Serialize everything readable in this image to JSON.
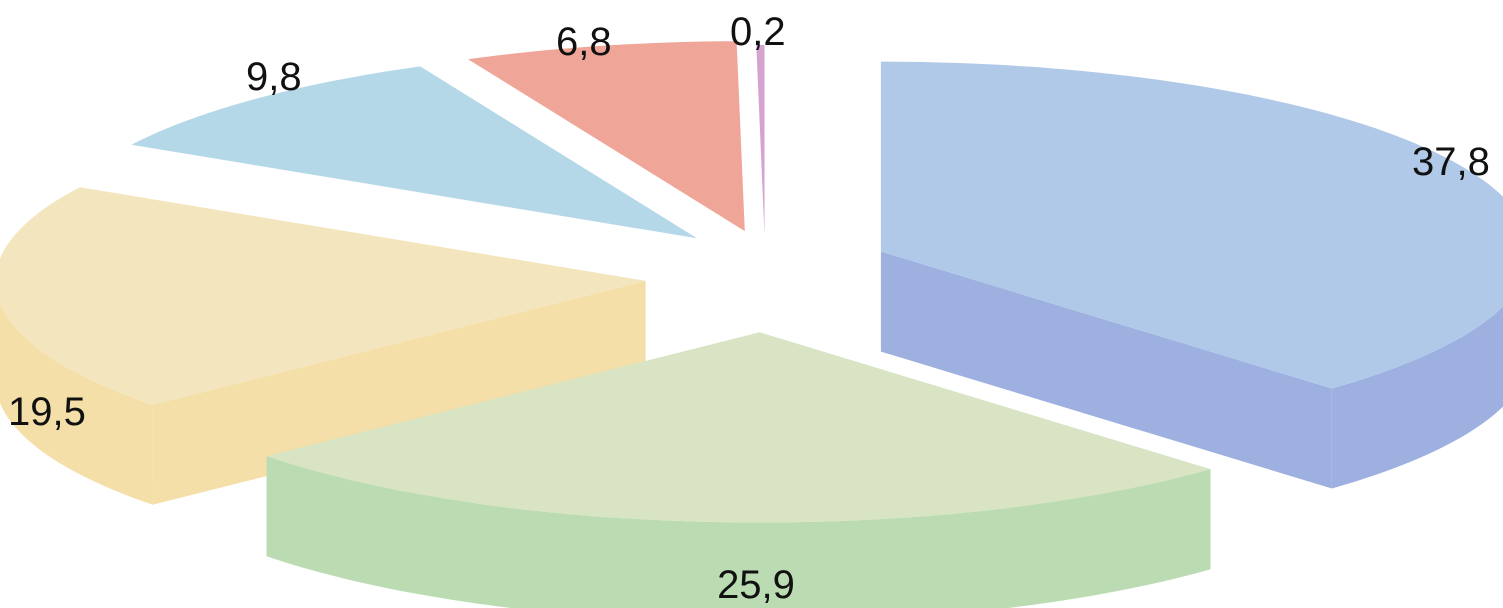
{
  "chart_data": {
    "type": "pie",
    "title": "",
    "style": "3d-exploded",
    "start": "12 o'clock, clockwise",
    "legend": "none",
    "slices": [
      {
        "label": "37,8",
        "value": 37.8,
        "top_color": "#B0C9E8",
        "side_color": "#9DB0DF"
      },
      {
        "label": "25,9",
        "value": 25.9,
        "top_color": "#D8E4C4",
        "side_color": "#BBDCB2"
      },
      {
        "label": "19,5",
        "value": 19.5,
        "top_color": "#F3E6BF",
        "side_color": "#F4DFA8"
      },
      {
        "label": "9,8",
        "value": 9.8,
        "top_color": "#B4D8E8",
        "side_color": "#A9D8E2"
      },
      {
        "label": "6,8",
        "value": 6.8,
        "top_color": "#EFA597",
        "side_color": "#EE8D78"
      },
      {
        "label": "0,2",
        "value": 0.2,
        "top_color": "#D6A2D0",
        "side_color": "#C987C4"
      }
    ]
  }
}
